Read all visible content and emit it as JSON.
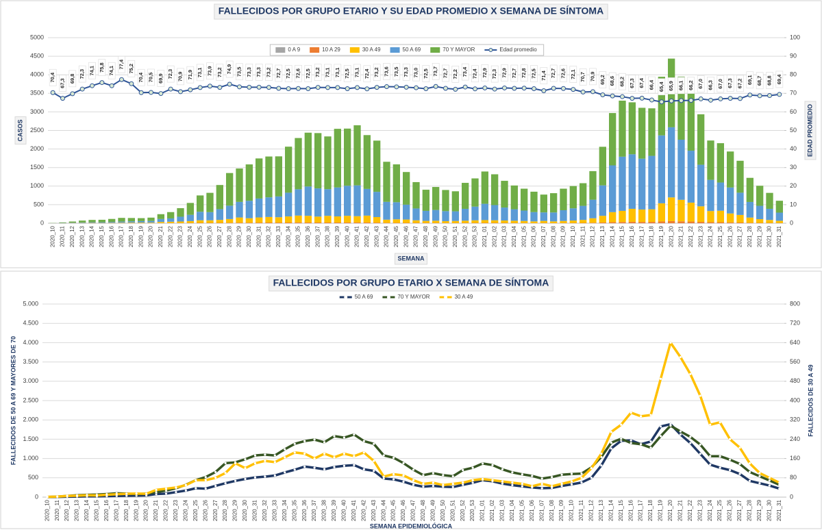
{
  "chart_data": [
    {
      "type": "bar",
      "title": "FALLECIDOS POR GRUPO ETARIO Y SU EDAD PROMEDIO X SEMANA DE SÍNTOMA",
      "xlabel": "SEMANA",
      "ylabel": "CASOS",
      "y2label": "EDAD PROMEDIO",
      "ylim": [
        0,
        5000
      ],
      "yticks": [
        0,
        500,
        1000,
        1500,
        2000,
        2500,
        3000,
        3500,
        4000,
        4500,
        5000
      ],
      "y2lim": [
        0,
        100
      ],
      "y2ticks": [
        0,
        10,
        20,
        30,
        40,
        50,
        60,
        70,
        80,
        90,
        100
      ],
      "grid": true,
      "stacked": true,
      "categories": [
        "2020_10",
        "2020_11",
        "2020_12",
        "2020_13",
        "2020_14",
        "2020_15",
        "2020_16",
        "2020_17",
        "2020_18",
        "2020_19",
        "2020_20",
        "2020_21",
        "2020_22",
        "2020_23",
        "2020_24",
        "2020_25",
        "2020_26",
        "2020_27",
        "2020_28",
        "2020_29",
        "2020_30",
        "2020_31",
        "2020_32",
        "2020_33",
        "2020_34",
        "2020_35",
        "2020_36",
        "2020_37",
        "2020_38",
        "2020_39",
        "2020_40",
        "2020_41",
        "2020_42",
        "2020_43",
        "2020_44",
        "2020_45",
        "2020_46",
        "2020_47",
        "2020_48",
        "2020_49",
        "2020_50",
        "2020_51",
        "2020_52",
        "2020_53",
        "2021_01",
        "2021_02",
        "2021_03",
        "2021_04",
        "2021_05",
        "2021_06",
        "2021_07",
        "2021_08",
        "2021_09",
        "2021_10",
        "2021_11",
        "2021_12",
        "2021_13",
        "2021_14",
        "2021_15",
        "2021_16",
        "2021_17",
        "2021_18",
        "2021_19",
        "2021_20",
        "2021_21",
        "2021_22",
        "2021_23",
        "2021_24",
        "2021_25",
        "2021_26",
        "2021_27",
        "2021_28",
        "2021_29",
        "2021_30",
        "2021_31"
      ],
      "series": [
        {
          "name": "0 A 9",
          "color": "#a5a5a5",
          "values": [
            0,
            0,
            0,
            0,
            0,
            0,
            0,
            0,
            0,
            0,
            0,
            0,
            0,
            1,
            0,
            0,
            1,
            0,
            1,
            0,
            1,
            0,
            1,
            1,
            0,
            1,
            0,
            1,
            0,
            1,
            0,
            1,
            0,
            0,
            1,
            0,
            0,
            0,
            1,
            0,
            0,
            0,
            1,
            0,
            0,
            1,
            0,
            0,
            0,
            0,
            1,
            0,
            0,
            0,
            0,
            1,
            0,
            1,
            1,
            2,
            1,
            1,
            2,
            1,
            1,
            1,
            0,
            1,
            0,
            1,
            0,
            0,
            0,
            0,
            0
          ]
        },
        {
          "name": "10 A 29",
          "color": "#ed7d31",
          "values": [
            0,
            0,
            1,
            1,
            1,
            1,
            1,
            2,
            2,
            2,
            2,
            4,
            5,
            5,
            7,
            9,
            8,
            10,
            12,
            15,
            14,
            16,
            17,
            16,
            18,
            20,
            20,
            18,
            19,
            18,
            20,
            19,
            20,
            16,
            10,
            11,
            10,
            8,
            7,
            7,
            6,
            6,
            7,
            8,
            9,
            8,
            8,
            7,
            6,
            5,
            6,
            5,
            6,
            7,
            9,
            13,
            20,
            28,
            32,
            36,
            34,
            35,
            45,
            55,
            50,
            44,
            36,
            28,
            27,
            22,
            18,
            13,
            10,
            8,
            6
          ]
        },
        {
          "name": "30 A 49",
          "color": "#ffc000",
          "values": [
            1,
            2,
            5,
            6,
            8,
            7,
            10,
            12,
            14,
            15,
            14,
            30,
            35,
            40,
            50,
            70,
            70,
            80,
            100,
            140,
            120,
            140,
            150,
            145,
            165,
            185,
            180,
            160,
            180,
            165,
            180,
            170,
            185,
            150,
            85,
            95,
            90,
            70,
            55,
            60,
            50,
            55,
            60,
            70,
            75,
            70,
            65,
            60,
            55,
            45,
            55,
            45,
            55,
            65,
            80,
            120,
            180,
            270,
            300,
            350,
            335,
            340,
            490,
            640,
            580,
            510,
            420,
            300,
            310,
            240,
            205,
            140,
            100,
            80,
            60
          ]
        },
        {
          "name": "50 A 69",
          "color": "#5b9bd5",
          "values": [
            2,
            5,
            10,
            15,
            20,
            20,
            25,
            30,
            35,
            40,
            45,
            80,
            90,
            130,
            170,
            230,
            220,
            290,
            360,
            420,
            470,
            510,
            530,
            560,
            640,
            710,
            790,
            760,
            720,
            780,
            810,
            830,
            720,
            680,
            480,
            460,
            400,
            320,
            270,
            290,
            270,
            260,
            320,
            370,
            440,
            410,
            350,
            310,
            280,
            250,
            230,
            240,
            290,
            330,
            380,
            500,
            820,
            1260,
            1460,
            1470,
            1370,
            1440,
            1830,
            1890,
            1620,
            1400,
            1120,
            840,
            760,
            700,
            600,
            420,
            360,
            300,
            220
          ]
        },
        {
          "name": "70 Y MAYOR",
          "color": "#70ad47",
          "values": [
            5,
            15,
            30,
            50,
            60,
            65,
            80,
            100,
            90,
            80,
            90,
            130,
            170,
            230,
            320,
            440,
            520,
            650,
            880,
            900,
            980,
            1080,
            1100,
            1080,
            1240,
            1380,
            1450,
            1490,
            1420,
            1580,
            1540,
            1620,
            1450,
            1380,
            1080,
            1020,
            880,
            710,
            570,
            620,
            570,
            540,
            700,
            760,
            870,
            830,
            720,
            640,
            590,
            550,
            480,
            520,
            580,
            600,
            610,
            770,
            1040,
            1410,
            1510,
            1400,
            1370,
            1280,
            1580,
            1850,
            1700,
            1560,
            1360,
            1060,
            1060,
            970,
            860,
            650,
            540,
            430,
            320
          ]
        },
        {
          "name": "Edad promedio",
          "type": "line",
          "axis": "y2",
          "color": "#2f5597",
          "values": [
            70.4,
            67.3,
            69.8,
            72.3,
            74.1,
            75.8,
            74.1,
            77.4,
            75.2,
            70.4,
            70.5,
            69.9,
            72.3,
            70.9,
            71.9,
            73.1,
            73.9,
            73.2,
            74.9,
            73.5,
            73.3,
            73.3,
            73.2,
            72.7,
            72.5,
            72.6,
            72.5,
            73.2,
            73.1,
            73.1,
            72.5,
            73.1,
            72.4,
            73.2,
            73.6,
            73.5,
            73.3,
            73.0,
            72.5,
            73.7,
            72.7,
            72.2,
            73.4,
            72.4,
            72.9,
            72.3,
            72.9,
            72.7,
            72.8,
            72.5,
            71.4,
            72.7,
            72.6,
            72.1,
            70.7,
            70.9,
            69.2,
            68.6,
            68.2,
            67.3,
            67.4,
            66.4,
            65.4,
            65.9,
            66.1,
            66.2,
            67.0,
            66.3,
            67.0,
            67.3,
            67.2,
            69.1,
            68.7,
            68.8,
            69.4
          ],
          "value_labels": [
            "70,4",
            "67,3",
            "69,8",
            "72,3",
            "74,1",
            "75,8",
            "74,1",
            "77,4",
            "75,2",
            "70,4",
            "70,5",
            "69,9",
            "72,3",
            "70,9",
            "71,9",
            "73,1",
            "73,9",
            "73,2",
            "74,9",
            "73,5",
            "73,3",
            "73,3",
            "73,2",
            "72,7",
            "72,5",
            "72,6",
            "72,5",
            "73,2",
            "73,1",
            "73,1",
            "72,5",
            "73,1",
            "72,4",
            "73,2",
            "73,6",
            "73,5",
            "73,3",
            "73,0",
            "72,5",
            "73,7",
            "72,7",
            "72,2",
            "73,4",
            "72,4",
            "72,9",
            "72,3",
            "72,9",
            "72,7",
            "72,8",
            "72,5",
            "71,4",
            "72,7",
            "72,6",
            "72,1",
            "70,7",
            "70,9",
            "69,2",
            "68,6",
            "68,2",
            "67,3",
            "67,4",
            "66,4",
            "65,4",
            "65,9",
            "66,1",
            "66,2",
            "67,0",
            "66,3",
            "67,0",
            "67,3",
            "67,2",
            "69,1",
            "68,7",
            "68,8",
            "69,4"
          ]
        }
      ]
    },
    {
      "type": "line",
      "title": "FALLECIDOS POR GRUPO ETARIO X SEMANA DE SÍNTOMA",
      "xlabel": "SEMANA EPIDEMIOLÓGICA",
      "ylabel": "FALLECIDOS DE 50 A 69 Y MAYORES DE 70",
      "y2label": "FALLECIDOS DE 30 A 49",
      "ylim": [
        0,
        5000
      ],
      "yticks": [
        0,
        500,
        {
          "value": 1000,
          "label": "1.000"
        },
        {
          "value": 1500,
          "label": "1.500"
        },
        {
          "value": 2000,
          "label": "2.000"
        },
        {
          "value": 2500,
          "label": "2.500"
        },
        {
          "value": 3000,
          "label": "3.000"
        },
        {
          "value": 3500,
          "label": "3.500"
        },
        {
          "value": 4000,
          "label": "4.000"
        },
        {
          "value": 4500,
          "label": "4.500"
        },
        {
          "value": 5000,
          "label": "5.000"
        }
      ],
      "y2lim": [
        0,
        800
      ],
      "y2ticks": [
        0,
        80,
        160,
        240,
        320,
        400,
        480,
        560,
        640,
        720,
        800
      ],
      "grid": true,
      "categories": [
        "2020_10",
        "2020_11",
        "2020_12",
        "2020_13",
        "2020_14",
        "2020_15",
        "2020_16",
        "2020_17",
        "2020_18",
        "2020_19",
        "2020_20",
        "2020_21",
        "2020_22",
        "2020_23",
        "2020_24",
        "2020_25",
        "2020_26",
        "2020_27",
        "2020_28",
        "2020_29",
        "2020_30",
        "2020_31",
        "2020_32",
        "2020_33",
        "2020_34",
        "2020_35",
        "2020_36",
        "2020_37",
        "2020_38",
        "2020_39",
        "2020_40",
        "2020_41",
        "2020_42",
        "2020_43",
        "2020_44",
        "2020_45",
        "2020_46",
        "2020_47",
        "2020_48",
        "2020_49",
        "2020_50",
        "2020_51",
        "2020_52",
        "2020_53",
        "2021_01",
        "2021_02",
        "2021_03",
        "2021_04",
        "2021_05",
        "2021_06",
        "2021_07",
        "2021_08",
        "2021_09",
        "2021_10",
        "2021_11",
        "2021_12",
        "2021_13",
        "2021_14",
        "2021_15",
        "2021_16",
        "2021_17",
        "2021_18",
        "2021_19",
        "2021_20",
        "2021_21",
        "2021_22",
        "2021_23",
        "2021_24",
        "2021_25",
        "2021_26",
        "2021_27",
        "2021_28",
        "2021_29",
        "2021_30",
        "2021_31"
      ],
      "series": [
        {
          "name": "50 A 69",
          "color": "#1f3864",
          "values": [
            2,
            5,
            10,
            15,
            20,
            20,
            25,
            30,
            35,
            40,
            45,
            80,
            90,
            130,
            170,
            230,
            220,
            290,
            360,
            420,
            470,
            510,
            530,
            560,
            640,
            710,
            790,
            760,
            720,
            780,
            810,
            830,
            720,
            680,
            480,
            460,
            400,
            320,
            270,
            290,
            270,
            260,
            320,
            370,
            440,
            410,
            350,
            310,
            280,
            250,
            230,
            240,
            290,
            330,
            380,
            500,
            820,
            1260,
            1460,
            1470,
            1370,
            1440,
            1830,
            1890,
            1620,
            1400,
            1120,
            840,
            760,
            700,
            600,
            420,
            360,
            300,
            220
          ]
        },
        {
          "name": "70 Y MAYOR",
          "color": "#375623",
          "values": [
            5,
            15,
            30,
            50,
            60,
            65,
            80,
            100,
            90,
            80,
            90,
            130,
            170,
            230,
            320,
            440,
            520,
            650,
            880,
            900,
            980,
            1080,
            1100,
            1080,
            1240,
            1380,
            1450,
            1490,
            1420,
            1580,
            1540,
            1620,
            1450,
            1380,
            1080,
            1020,
            880,
            710,
            570,
            620,
            570,
            540,
            700,
            760,
            870,
            830,
            720,
            640,
            590,
            550,
            480,
            520,
            580,
            600,
            610,
            770,
            1040,
            1410,
            1510,
            1400,
            1370,
            1280,
            1580,
            1850,
            1700,
            1560,
            1360,
            1060,
            1060,
            970,
            860,
            650,
            540,
            430,
            320
          ]
        },
        {
          "name": "30 A 49",
          "color": "#ffc000",
          "axis": "y2",
          "values": [
            1,
            2,
            5,
            6,
            8,
            7,
            10,
            12,
            14,
            15,
            14,
            30,
            35,
            40,
            50,
            70,
            70,
            80,
            100,
            140,
            120,
            140,
            150,
            145,
            165,
            185,
            180,
            160,
            180,
            165,
            180,
            170,
            185,
            150,
            85,
            95,
            90,
            70,
            55,
            60,
            50,
            55,
            60,
            70,
            75,
            70,
            65,
            60,
            55,
            45,
            55,
            45,
            55,
            65,
            80,
            120,
            180,
            270,
            300,
            350,
            335,
            340,
            490,
            640,
            580,
            510,
            420,
            300,
            310,
            240,
            205,
            140,
            100,
            80,
            60
          ]
        }
      ]
    }
  ]
}
